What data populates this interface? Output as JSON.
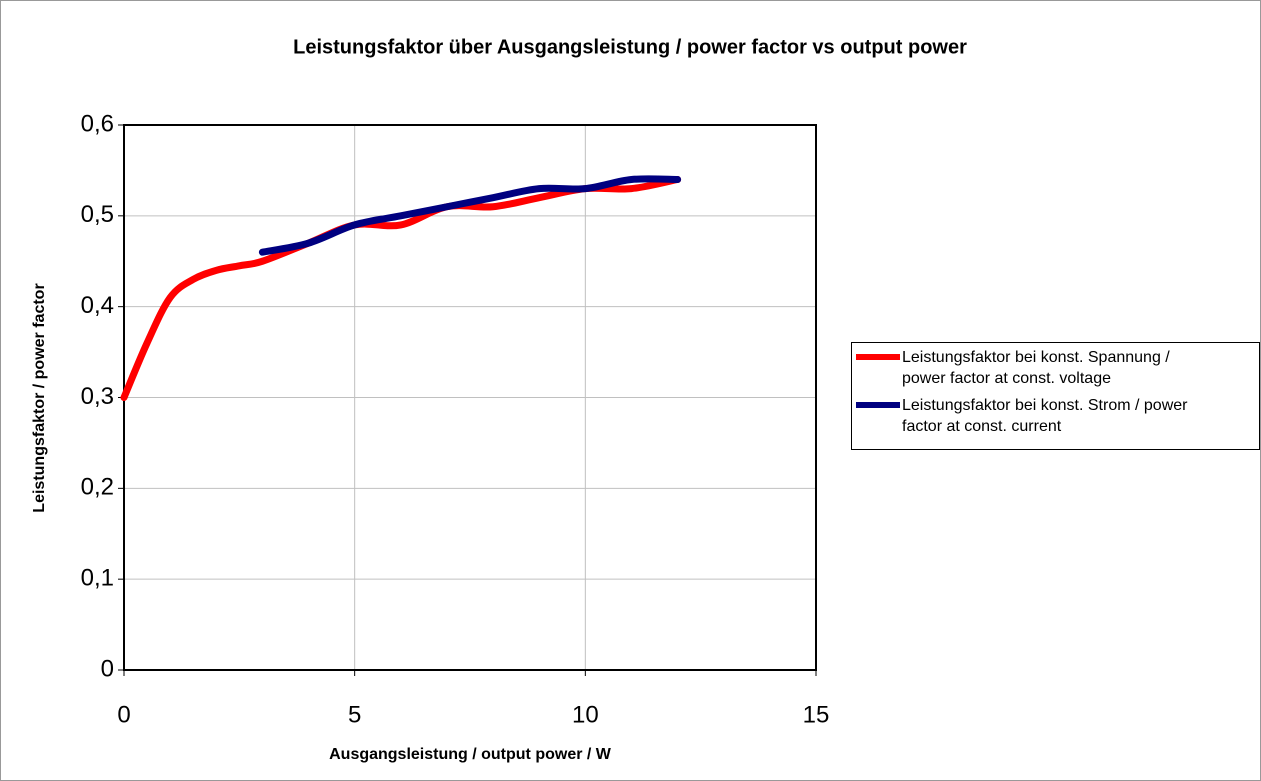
{
  "chart_data": {
    "type": "line",
    "title": "Leistungsfaktor über Ausgangsleistung / power factor vs output power",
    "x_label": "Ausgangsleistung / output power / W",
    "y_label": "Leistungsfaktor / power factor",
    "xlim": [
      0,
      15
    ],
    "xticks": [
      0,
      5,
      10,
      15
    ],
    "ylim": [
      0,
      0.6
    ],
    "yticks": [
      0,
      {
        "value": 0.1,
        "label": "0,1"
      },
      {
        "value": 0.2,
        "label": "0,2"
      },
      {
        "value": 0.3,
        "label": "0,3"
      },
      {
        "value": 0.4,
        "label": "0,4"
      },
      {
        "value": 0.5,
        "label": "0,5"
      },
      {
        "value": 0.6,
        "label": "0,6"
      }
    ],
    "grid": true,
    "legend": "right",
    "series": [
      {
        "name": "Leistungsfaktor bei konst. Spannung / power factor at const. voltage",
        "color": "#ff0000",
        "x": [
          0,
          0.5,
          1,
          1.5,
          2,
          2.5,
          3,
          4,
          5,
          6,
          7,
          8,
          9,
          10,
          11,
          12
        ],
        "values": [
          0.3,
          0.36,
          0.41,
          0.43,
          0.44,
          0.445,
          0.45,
          0.47,
          0.49,
          0.49,
          0.51,
          0.51,
          0.52,
          0.53,
          0.53,
          0.54
        ]
      },
      {
        "name": "Leistungsfaktor bei konst. Strom / power factor at const. current",
        "color": "#000080",
        "x": [
          3,
          4,
          5,
          6,
          7,
          8,
          9,
          10,
          11,
          12
        ],
        "values": [
          0.46,
          0.47,
          0.49,
          0.5,
          0.51,
          0.52,
          0.53,
          0.53,
          0.54,
          0.54
        ]
      }
    ]
  }
}
